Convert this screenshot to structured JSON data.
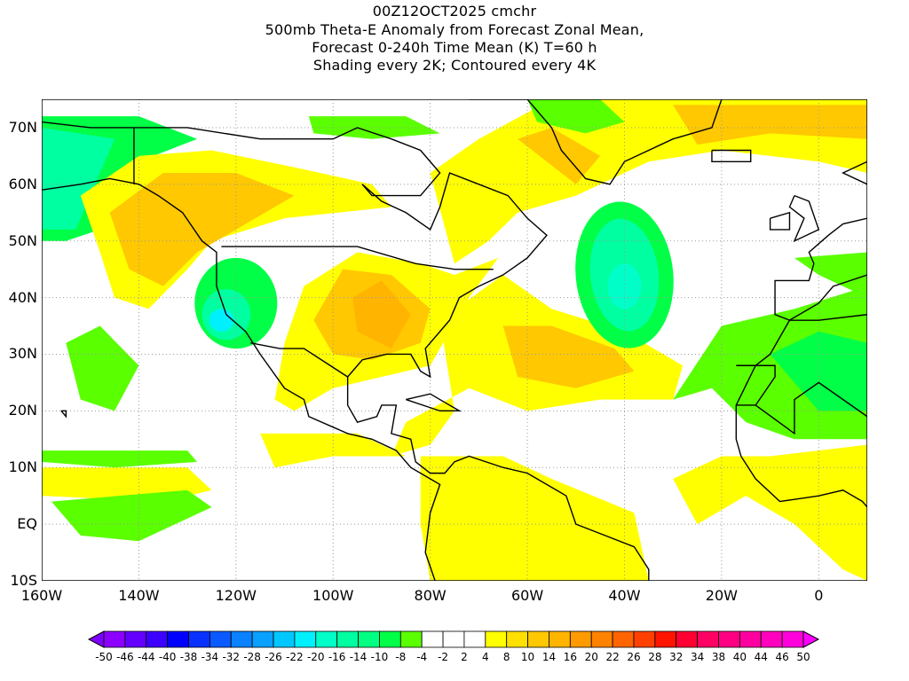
{
  "title": {
    "line1": "00Z12OCT2025 cmchr",
    "line2": "500mb Theta-E Anomaly from Forecast Zonal Mean,",
    "line3": "Forecast 0-240h Time Mean (K) T=60 h",
    "line4": "Shading every 2K; Contoured every 4K"
  },
  "axes": {
    "lat_labels": [
      "70N",
      "60N",
      "50N",
      "40N",
      "30N",
      "20N",
      "10N",
      "EQ",
      "10S"
    ],
    "lat_values": [
      70,
      60,
      50,
      40,
      30,
      20,
      10,
      0,
      -10
    ],
    "lon_labels": [
      "160W",
      "140W",
      "120W",
      "100W",
      "80W",
      "60W",
      "40W",
      "20W",
      "0"
    ],
    "lon_values": [
      -160,
      -140,
      -120,
      -100,
      -80,
      -60,
      -40,
      -20,
      0
    ],
    "lon_range": [
      -160,
      10
    ],
    "lat_range": [
      -10,
      75
    ]
  },
  "colorbar": {
    "labels": [
      "-50",
      "-46",
      "-44",
      "-40",
      "-38",
      "-34",
      "-32",
      "-28",
      "-26",
      "-22",
      "-20",
      "-16",
      "-14",
      "-10",
      "-8",
      "-4",
      "-2",
      "2",
      "4",
      "8",
      "10",
      "14",
      "16",
      "20",
      "22",
      "26",
      "28",
      "32",
      "34",
      "38",
      "40",
      "44",
      "46",
      "50"
    ],
    "low_color": "#8000ff",
    "high_color": "#ff00ff",
    "colors": [
      "#8c00ff",
      "#6400ff",
      "#3c00ff",
      "#0000ff",
      "#0a32ff",
      "#0a5aff",
      "#0a82ff",
      "#0aa0ff",
      "#00c8ff",
      "#00f0ff",
      "#00ffc8",
      "#00ffa0",
      "#00ff82",
      "#00ff46",
      "#5aff00",
      "#ffffff",
      "#ffffff",
      "#ffffff",
      "#ffff00",
      "#ffe000",
      "#ffc800",
      "#ffb400",
      "#ff9a00",
      "#ff8200",
      "#ff6400",
      "#ff4000",
      "#ff1400",
      "#ff0032",
      "#ff0064",
      "#ff0082",
      "#ff00a0",
      "#ff00be",
      "#ff00dc"
    ]
  }
}
